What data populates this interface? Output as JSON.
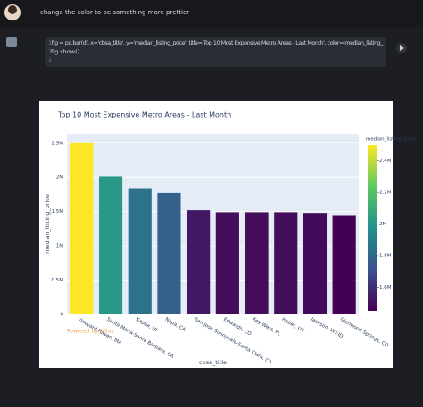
{
  "message": "change the color to be something more prettier",
  "code": {
    "line_numbers": [
      1,
      2,
      3
    ],
    "lines": [
      "fig = px.bar(df, x='cbsa_title', y='median_listing_price', title='Top 10 Most Expensive Metro Areas - Last Month', color='median_listing_",
      "fig.show()"
    ]
  },
  "chart_data": {
    "type": "bar",
    "title": "Top 10 Most Expensive Metro Areas - Last Month",
    "x_label": "cbsa_title",
    "y_label": "median_listing_price",
    "categories": [
      "Vineyard Haven, MA",
      "Santa Maria-Santa Barbara, CA",
      "Kapaa, HI",
      "Napa, CA",
      "San Jose-Sunnyvale-Santa Clara, CA",
      "Edwards, CO",
      "Key West, FL",
      "Heber, UT",
      "Jackson, WY-ID",
      "Glenwood Springs, CO"
    ],
    "values": [
      2500000,
      2010000,
      1840000,
      1770000,
      1520000,
      1490000,
      1490000,
      1490000,
      1480000,
      1450000
    ],
    "ylim": [
      0,
      2640000
    ],
    "yticks": [
      0,
      {
        "value": 500000,
        "label": "0.5M"
      },
      {
        "value": 1000000,
        "label": "1M"
      },
      {
        "value": 1500000,
        "label": "1.5M"
      },
      {
        "value": 2000000,
        "label": "2M"
      },
      {
        "value": 2500000,
        "label": "2.5M"
      }
    ],
    "colorbar": {
      "title": "median_listing_price",
      "lim": [
        1450000,
        2500000
      ],
      "ticks": [
        {
          "value": 1600000,
          "label": "1.6M"
        },
        {
          "value": 1800000,
          "label": "1.8M"
        },
        {
          "value": 2000000,
          "label": "2M"
        },
        {
          "value": 2200000,
          "label": "2.2M"
        },
        {
          "value": 2400000,
          "label": "2.4M"
        }
      ]
    },
    "colorscale": [
      "#440154",
      "#3b528b",
      "#21918c",
      "#5ec962",
      "#fde725"
    ],
    "grid": true,
    "watermark": "Powered by Julius"
  }
}
